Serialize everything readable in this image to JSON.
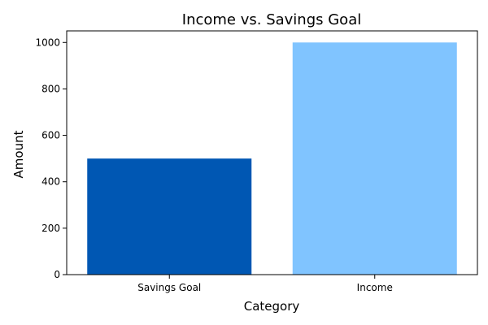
{
  "chart_data": {
    "type": "bar",
    "title": "Income vs. Savings Goal",
    "xlabel": "Category",
    "ylabel": "Amount",
    "categories": [
      "Savings Goal",
      "Income"
    ],
    "values": [
      500,
      1000
    ],
    "colors": [
      "#0057b3",
      "#80c4ff"
    ],
    "ylim": [
      0,
      1050
    ],
    "yticks": [
      0,
      200,
      400,
      600,
      800,
      1000
    ],
    "grid": false,
    "legend": false
  }
}
